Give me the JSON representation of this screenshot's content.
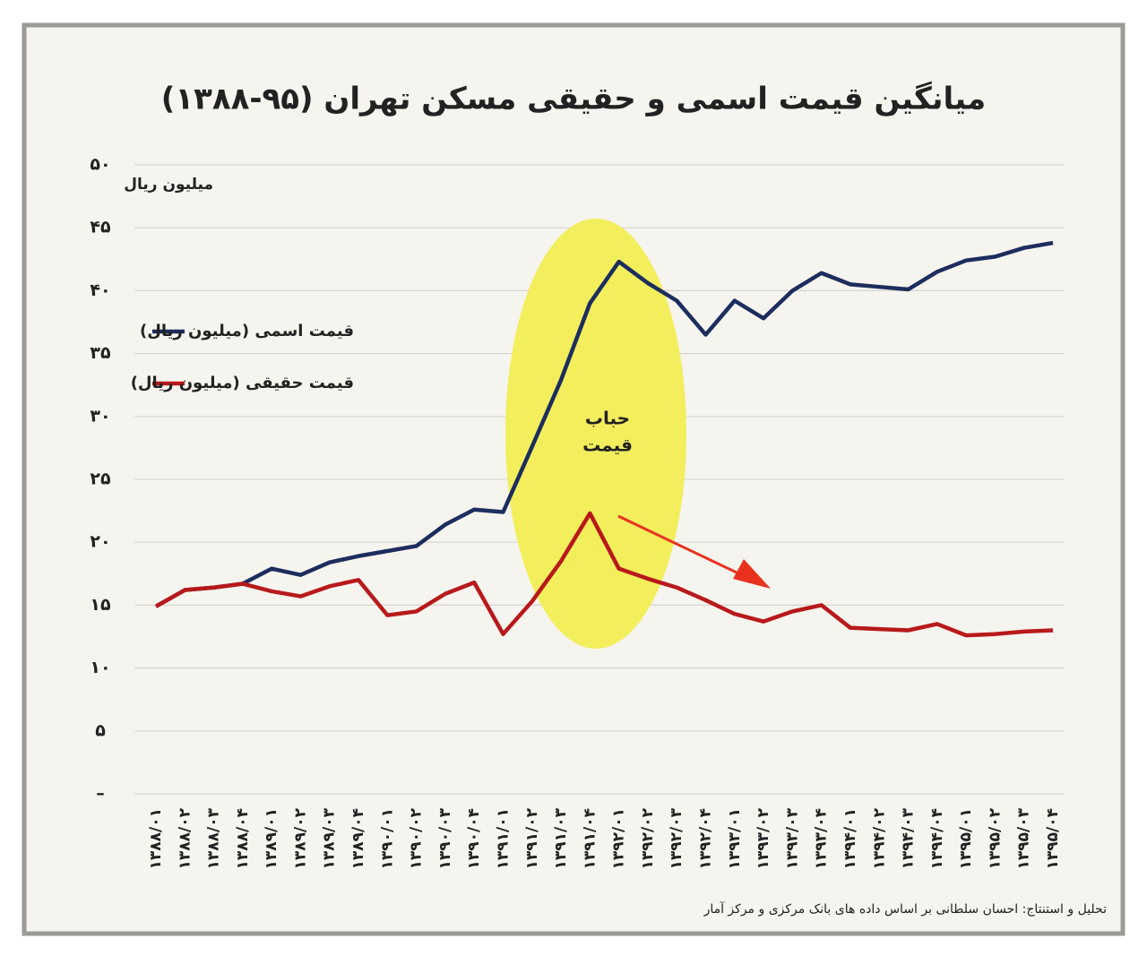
{
  "chart_data": {
    "type": "line",
    "title": "میانگین قیمت اسمی و حقیقی مسکن تهران (۹۵-۱۳۸۸)",
    "y_label": "میلیون ریال",
    "annotation": [
      "حباب",
      "قیمت"
    ],
    "source": "تحلیل و استنتاج: احسان سلطانی بر اساس داده های بانک مرکزی و مرکز آمار",
    "categories": [
      "۱۳۸۸/۰۱",
      "۱۳۸۸/۰۲",
      "۱۳۸۸/۰۳",
      "۱۳۸۸/۰۴",
      "۱۳۸۹/۰۱",
      "۱۳۸۹/۰۲",
      "۱۳۸۹/۰۳",
      "۱۳۸۹/۰۴",
      "۱۳۹۰/۰۱",
      "۱۳۹۰/۰۲",
      "۱۳۹۰/۰۳",
      "۱۳۹۰/۰۴",
      "۱۳۹۱/۰۱",
      "۱۳۹۱/۰۲",
      "۱۳۹۱/۰۳",
      "۱۳۹۱/۰۴",
      "۱۳۹۲/۰۱",
      "۱۳۹۲/۰۲",
      "۱۳۹۲/۰۳",
      "۱۳۹۲/۰۴",
      "۱۳۹۳/۰۱",
      "۱۳۹۳/۰۲",
      "۱۳۹۳/۰۳",
      "۱۳۹۳/۰۴",
      "۱۳۹۴/۰۱",
      "۱۳۹۴/۰۲",
      "۱۳۹۴/۰۳",
      "۱۳۹۴/۰۴",
      "۱۳۹۵/۰۱",
      "۱۳۹۵/۰۲",
      "۱۳۹۵/۰۳",
      "۱۳۹۵/۰۴"
    ],
    "series": [
      {
        "name": "قیمت اسمی (میلیون ریال)",
        "color": "#1c2d5e",
        "values": [
          14.9,
          16.2,
          16.4,
          16.7,
          17.9,
          17.4,
          18.4,
          18.9,
          19.3,
          19.7,
          21.4,
          22.6,
          22.4,
          27.6,
          32.9,
          39.0,
          42.3,
          40.6,
          39.2,
          36.5,
          39.2,
          37.8,
          40.0,
          41.4,
          40.5,
          40.3,
          40.1,
          41.5,
          42.4,
          42.7,
          43.4,
          43.8
        ]
      },
      {
        "name": "قیمت حقیقی (میلیون ریال)",
        "color": "#b8191b",
        "values": [
          14.9,
          16.2,
          16.4,
          16.7,
          16.1,
          15.7,
          16.5,
          17.0,
          14.2,
          14.5,
          15.9,
          16.8,
          12.7,
          15.3,
          18.5,
          22.3,
          17.9,
          17.1,
          16.4,
          15.4,
          14.3,
          13.7,
          14.5,
          15.0,
          13.2,
          13.1,
          13.0,
          13.5,
          12.6,
          12.7,
          12.9,
          13.0
        ]
      }
    ],
    "ylim": [
      0,
      50
    ],
    "yticks": [
      {
        "value": 0,
        "label": "–"
      },
      {
        "value": 5,
        "label": "۵"
      },
      {
        "value": 10,
        "label": "۱۰"
      },
      {
        "value": 15,
        "label": "۱۵"
      },
      {
        "value": 20,
        "label": "۲۰"
      },
      {
        "value": 25,
        "label": "۲۵"
      },
      {
        "value": 30,
        "label": "۳۰"
      },
      {
        "value": 35,
        "label": "۳۵"
      },
      {
        "value": 40,
        "label": "۴۰"
      },
      {
        "value": 45,
        "label": "۴۵"
      },
      {
        "value": 50,
        "label": "۵۰"
      }
    ],
    "grid": true
  }
}
